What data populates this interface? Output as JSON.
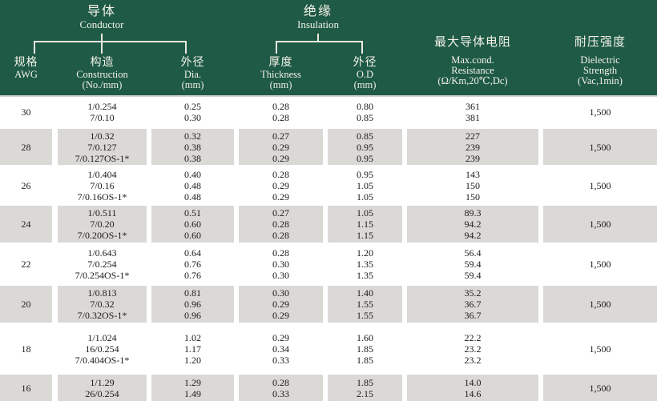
{
  "colors": {
    "header_green": "#1e5a46",
    "row_shaded_gray": "#dbd9d6",
    "header_text": "#f4f1e8",
    "body_text": "#1a1a1a"
  },
  "header": {
    "groups": [
      {
        "zh": "导体",
        "en": "Conductor"
      },
      {
        "zh": "绝缘",
        "en": "Insulation"
      }
    ],
    "columns": [
      {
        "lines": [
          "规格",
          "AWG"
        ]
      },
      {
        "lines": [
          "构造",
          "Construction",
          "(No./mm)"
        ]
      },
      {
        "lines": [
          "外径",
          "Dia.",
          "(mm)"
        ]
      },
      {
        "lines": [
          "厚度",
          "Thickness",
          "(mm)"
        ]
      },
      {
        "lines": [
          "外径",
          "O.D",
          "(mm)"
        ]
      },
      {
        "lines": [
          "最大导体电阻",
          "Max.cond.",
          "Resistance",
          "(Ω/Km,20℃,Dc)"
        ]
      },
      {
        "lines": [
          "耐压强度",
          "Dielectric",
          "Strength",
          "(Vac,1min)"
        ]
      }
    ]
  },
  "table": {
    "rows": [
      {
        "awg": "30",
        "shaded": false,
        "dielectric": "1,500",
        "entries": [
          [
            "1/0.254",
            "0.25",
            "0.28",
            "0.80",
            "361"
          ],
          [
            "7/0.10",
            "0.30",
            "0.28",
            "0.85",
            "381"
          ]
        ]
      },
      {
        "awg": "28",
        "shaded": true,
        "dielectric": "1,500",
        "entries": [
          [
            "1/0.32",
            "0.32",
            "0.27",
            "0.85",
            "227"
          ],
          [
            "7/0.127",
            "0.38",
            "0.29",
            "0.95",
            "239"
          ],
          [
            "7/0.127OS-1*",
            "0.38",
            "0.29",
            "0.95",
            "239"
          ]
        ]
      },
      {
        "awg": "26",
        "shaded": false,
        "dielectric": "1,500",
        "entries": [
          [
            "1/0.404",
            "0.40",
            "0.28",
            "0.95",
            "143"
          ],
          [
            "7/0.16",
            "0.48",
            "0.29",
            "1.05",
            "150"
          ],
          [
            "7/0.16OS-1*",
            "0.48",
            "0.29",
            "1.05",
            "150"
          ]
        ]
      },
      {
        "awg": "24",
        "shaded": true,
        "dielectric": "1,500",
        "entries": [
          [
            "1/0.511",
            "0.51",
            "0.27",
            "1.05",
            "89.3"
          ],
          [
            "7/0.20",
            "0.60",
            "0.28",
            "1.15",
            "94.2"
          ],
          [
            "7/0.20OS-1*",
            "0.60",
            "0.28",
            "1.15",
            "94.2"
          ]
        ]
      },
      {
        "awg": "22",
        "shaded": false,
        "dielectric": "1,500",
        "entries": [
          [
            "1/0.643",
            "0.64",
            "0.28",
            "1.20",
            "56.4"
          ],
          [
            "7/0.254",
            "0.76",
            "0.30",
            "1.35",
            "59.4"
          ],
          [
            "7/0.254OS-1*",
            "0.76",
            "0.30",
            "1.35",
            "59.4"
          ]
        ]
      },
      {
        "awg": "20",
        "shaded": true,
        "dielectric": "1,500",
        "entries": [
          [
            "1/0.813",
            "0.81",
            "0.30",
            "1.40",
            "35.2"
          ],
          [
            "7/0.32",
            "0.96",
            "0.29",
            "1.55",
            "36.7"
          ],
          [
            "7/0.32OS-1*",
            "0.96",
            "0.29",
            "1.55",
            "36.7"
          ]
        ]
      },
      {
        "awg": "18",
        "shaded": false,
        "dielectric": "1,500",
        "entries": [
          [
            "1/1.024",
            "1.02",
            "0.29",
            "1.60",
            "22.2"
          ],
          [
            "16/0.254",
            "1.17",
            "0.34",
            "1.85",
            "23.2"
          ],
          [
            "7/0.404OS-1*",
            "1.20",
            "0.33",
            "1.85",
            "23.2"
          ]
        ]
      },
      {
        "awg": "16",
        "shaded": true,
        "dielectric": "1,500",
        "entries": [
          [
            "1/1.29",
            "1.29",
            "0.28",
            "1.85",
            "14.0"
          ],
          [
            "26/0.254",
            "1.49",
            "0.33",
            "2.15",
            "14.6"
          ]
        ]
      }
    ]
  }
}
